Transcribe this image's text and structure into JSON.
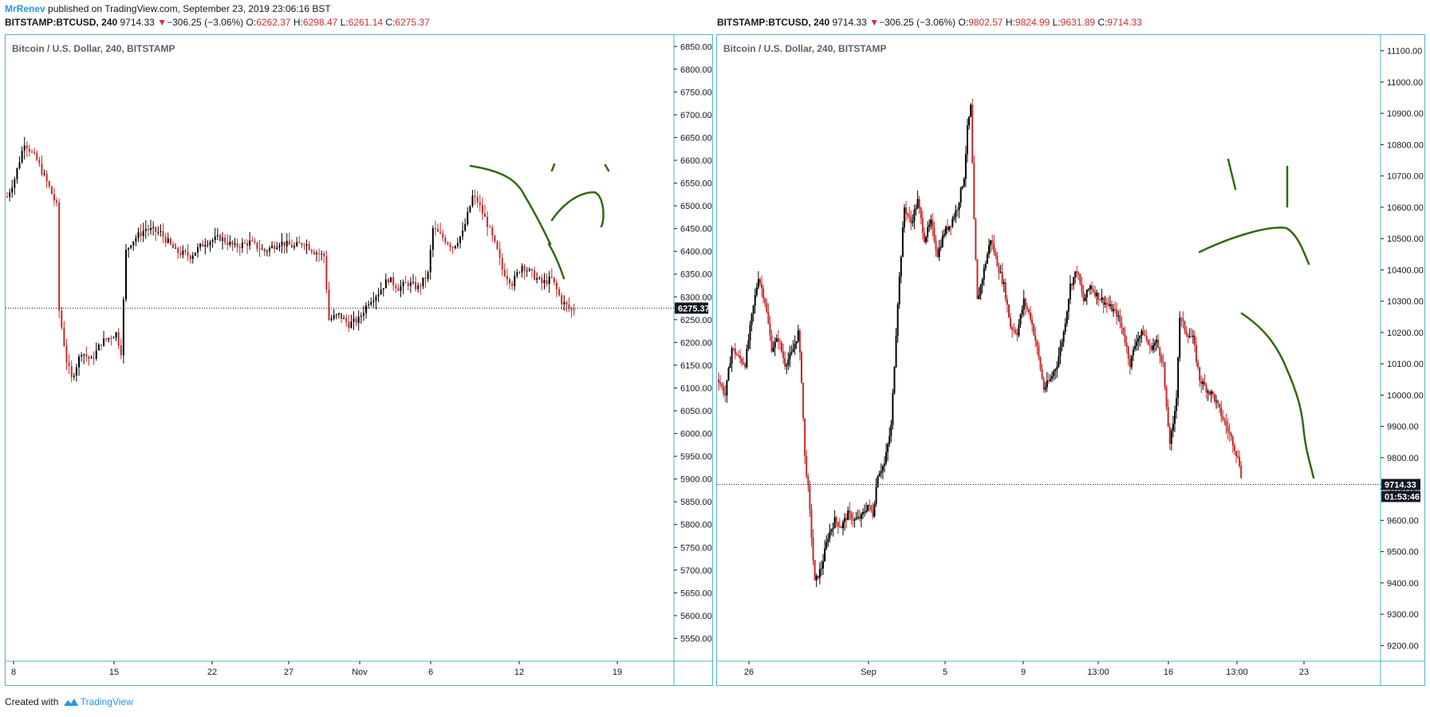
{
  "header": {
    "author": "MrRenev",
    "published": " published on TradingView.com, September 23, 2019 23:06:16 BST"
  },
  "ohlc_left": {
    "symbol": "BITSTAMP:BTCUSD, 240",
    "last": "9714.33",
    "arrow": "▼",
    "change": "−306.25 (−3.06%)",
    "o_label": "O:",
    "o": "6262.37",
    "h_label": "H:",
    "h": "6298.47",
    "l_label": "L:",
    "l": "6261.14",
    "c_label": "C:",
    "c": "6275.37"
  },
  "ohlc_right": {
    "symbol": "BITSTAMP:BTCUSD, 240",
    "last": "9714.33",
    "arrow": "▼",
    "change": "−306.25 (−3.06%)",
    "o_label": "O:",
    "o": "9802.57",
    "h_label": "H:",
    "h": "9824.99",
    "l_label": "L:",
    "l": "9631.89",
    "c_label": "C:",
    "c": "9714.33"
  },
  "footer": {
    "created_with": "Created with ",
    "brand": "TradingView"
  },
  "colors": {
    "up": "#000000",
    "down": "#c62828",
    "drawing": "#2e6b12",
    "border": "#4fb3c9"
  },
  "chart_data": [
    {
      "type": "candlestick",
      "title": "Bitcoin / U.S. Dollar, 240, BITSTAMP",
      "ylim": [
        5500,
        6875
      ],
      "y_ticks": [
        "6850.00",
        "6800.00",
        "6750.00",
        "6700.00",
        "6650.00",
        "6600.00",
        "6550.00",
        "6500.00",
        "6450.00",
        "6400.00",
        "6350.00",
        "6300.00",
        "6250.00",
        "6200.00",
        "6150.00",
        "6100.00",
        "6050.00",
        "6000.00",
        "5950.00",
        "5900.00",
        "5850.00",
        "5800.00",
        "5750.00",
        "5700.00",
        "5650.00",
        "5600.00",
        "5550.00"
      ],
      "x_ticks": [
        "8",
        "15",
        "22",
        "27",
        "Nov",
        "6",
        "12",
        "19"
      ],
      "last_price_label": "6275.37",
      "last_price": 6275.37,
      "path": [
        [
          0,
          6520
        ],
        [
          3,
          6560
        ],
        [
          7,
          6640
        ],
        [
          12,
          6600
        ],
        [
          17,
          6540
        ],
        [
          20,
          6500
        ],
        [
          21,
          6270
        ],
        [
          24,
          6160
        ],
        [
          26,
          6120
        ],
        [
          30,
          6180
        ],
        [
          34,
          6160
        ],
        [
          38,
          6200
        ],
        [
          44,
          6220
        ],
        [
          46,
          6180
        ],
        [
          48,
          6400
        ],
        [
          50,
          6420
        ],
        [
          56,
          6450
        ],
        [
          62,
          6440
        ],
        [
          68,
          6400
        ],
        [
          74,
          6390
        ],
        [
          80,
          6420
        ],
        [
          86,
          6430
        ],
        [
          92,
          6410
        ],
        [
          98,
          6420
        ],
        [
          104,
          6400
        ],
        [
          110,
          6420
        ],
        [
          116,
          6410
        ],
        [
          120,
          6420
        ],
        [
          124,
          6400
        ],
        [
          128,
          6390
        ],
        [
          130,
          6250
        ],
        [
          134,
          6260
        ],
        [
          138,
          6240
        ],
        [
          142,
          6250
        ],
        [
          146,
          6290
        ],
        [
          150,
          6310
        ],
        [
          154,
          6340
        ],
        [
          158,
          6320
        ],
        [
          162,
          6330
        ],
        [
          166,
          6320
        ],
        [
          170,
          6350
        ],
        [
          172,
          6450
        ],
        [
          176,
          6430
        ],
        [
          180,
          6410
        ],
        [
          184,
          6440
        ],
        [
          188,
          6520
        ],
        [
          190,
          6510
        ],
        [
          194,
          6460
        ],
        [
          198,
          6400
        ],
        [
          200,
          6360
        ],
        [
          204,
          6330
        ],
        [
          208,
          6370
        ],
        [
          212,
          6350
        ],
        [
          216,
          6330
        ],
        [
          220,
          6340
        ],
        [
          224,
          6290
        ],
        [
          228,
          6270
        ],
        [
          230,
          6275
        ]
      ],
      "max_index": 270
    },
    {
      "type": "candlestick",
      "title": "Bitcoin / U.S. Dollar, 240, BITSTAMP",
      "ylim": [
        9150,
        11150
      ],
      "y_ticks": [
        "11100.00",
        "11000.00",
        "10900.00",
        "10800.00",
        "10700.00",
        "10600.00",
        "10500.00",
        "10400.00",
        "10300.00",
        "10200.00",
        "10100.00",
        "10000.00",
        "9900.00",
        "9800.00",
        "9700.00",
        "9600.00",
        "9500.00",
        "9400.00",
        "9300.00",
        "9200.00"
      ],
      "x_ticks": [
        "26",
        "Sep",
        "5",
        "9",
        "13:00",
        "16",
        "13:00",
        "23"
      ],
      "last_price_label": "9714.33",
      "last_price": 9714.33,
      "countdown_label": "01:53:46",
      "path": [
        [
          0,
          10050
        ],
        [
          4,
          10000
        ],
        [
          8,
          10150
        ],
        [
          12,
          10120
        ],
        [
          16,
          10100
        ],
        [
          20,
          10250
        ],
        [
          24,
          10380
        ],
        [
          28,
          10300
        ],
        [
          32,
          10150
        ],
        [
          36,
          10180
        ],
        [
          40,
          10100
        ],
        [
          44,
          10130
        ],
        [
          48,
          10200
        ],
        [
          50,
          10050
        ],
        [
          52,
          9800
        ],
        [
          54,
          9700
        ],
        [
          58,
          9400
        ],
        [
          62,
          9450
        ],
        [
          66,
          9550
        ],
        [
          70,
          9600
        ],
        [
          74,
          9580
        ],
        [
          78,
          9620
        ],
        [
          82,
          9600
        ],
        [
          86,
          9610
        ],
        [
          90,
          9650
        ],
        [
          93,
          9620
        ],
        [
          96,
          9750
        ],
        [
          100,
          9780
        ],
        [
          104,
          9900
        ],
        [
          108,
          10300
        ],
        [
          112,
          10600
        ],
        [
          116,
          10550
        ],
        [
          120,
          10620
        ],
        [
          124,
          10500
        ],
        [
          128,
          10550
        ],
        [
          132,
          10450
        ],
        [
          136,
          10520
        ],
        [
          140,
          10550
        ],
        [
          144,
          10600
        ],
        [
          148,
          10700
        ],
        [
          150,
          10850
        ],
        [
          152,
          10920
        ],
        [
          154,
          10550
        ],
        [
          156,
          10300
        ],
        [
          160,
          10400
        ],
        [
          164,
          10500
        ],
        [
          168,
          10420
        ],
        [
          172,
          10350
        ],
        [
          176,
          10220
        ],
        [
          180,
          10200
        ],
        [
          184,
          10300
        ],
        [
          188,
          10250
        ],
        [
          192,
          10150
        ],
        [
          196,
          10020
        ],
        [
          200,
          10050
        ],
        [
          204,
          10100
        ],
        [
          208,
          10200
        ],
        [
          212,
          10350
        ],
        [
          216,
          10400
        ],
        [
          220,
          10300
        ],
        [
          224,
          10350
        ],
        [
          228,
          10320
        ],
        [
          232,
          10300
        ],
        [
          236,
          10280
        ],
        [
          240,
          10260
        ],
        [
          244,
          10200
        ],
        [
          248,
          10100
        ],
        [
          252,
          10180
        ],
        [
          256,
          10200
        ],
        [
          260,
          10150
        ],
        [
          264,
          10170
        ],
        [
          268,
          10100
        ],
        [
          270,
          9950
        ],
        [
          272,
          9850
        ],
        [
          274,
          9900
        ],
        [
          276,
          10000
        ],
        [
          278,
          10250
        ],
        [
          282,
          10200
        ],
        [
          286,
          10180
        ],
        [
          290,
          10050
        ],
        [
          294,
          10020
        ],
        [
          298,
          10000
        ],
        [
          302,
          9950
        ],
        [
          306,
          9900
        ],
        [
          310,
          9850
        ],
        [
          314,
          9780
        ],
        [
          316,
          9714
        ]
      ],
      "max_index": 400
    }
  ]
}
